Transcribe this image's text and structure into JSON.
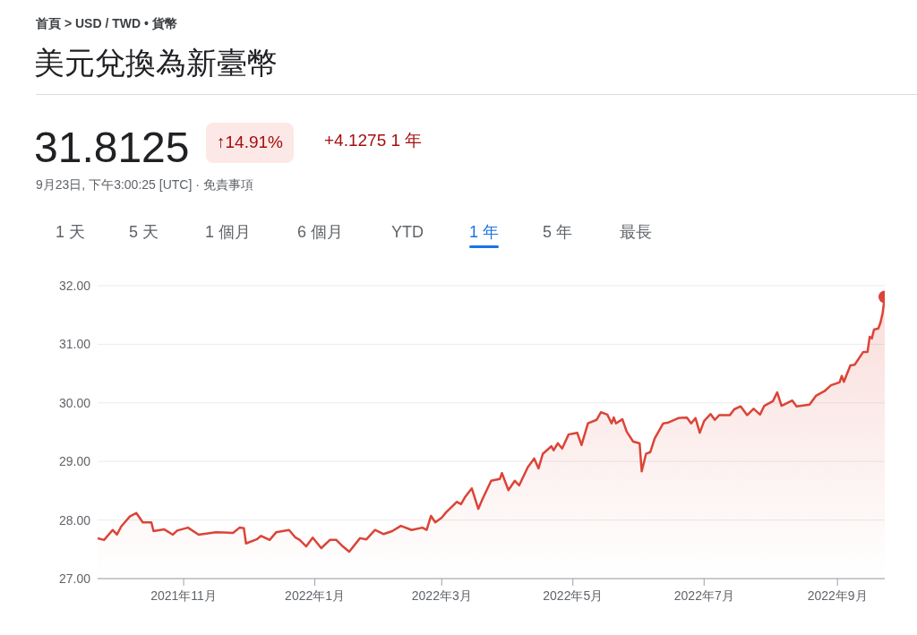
{
  "chart_data": {
    "type": "area",
    "title": "美元兌換為新臺幣",
    "annotations": [
      "首頁 > USD / TWD • 貨幣",
      "31.8125",
      "↑14.91%",
      "+4.1275 1 年",
      "9月23日, 下午3:00:25 [UTC] · 免責事項",
      "1 天",
      "5 天",
      "1 個月",
      "6 個月",
      "YTD",
      "1 年",
      "5 年",
      "最長"
    ],
    "series": [
      {
        "color": "#db4437",
        "x": [
          "2021-09-22",
          "2021-09-25",
          "2021-09-29",
          "2021-10-01",
          "2021-10-03",
          "2021-10-07",
          "2021-10-10",
          "2021-10-13",
          "2021-10-17",
          "2021-10-18",
          "2021-10-23",
          "2021-10-27",
          "2021-10-29",
          "2021-11-03",
          "2021-11-08",
          "2021-11-16",
          "2021-11-24",
          "2021-11-27",
          "2021-11-29",
          "2021-11-30",
          "2021-12-05",
          "2021-12-07",
          "2021-12-11",
          "2021-12-14",
          "2021-12-20",
          "2021-12-23",
          "2021-12-25",
          "2021-12-28",
          "2021-12-31",
          "2022-01-04",
          "2022-01-08",
          "2022-01-11",
          "2022-01-14",
          "2022-01-17",
          "2022-01-22",
          "2022-01-25",
          "2022-01-29",
          "2022-02-02",
          "2022-02-06",
          "2022-02-10",
          "2022-02-15",
          "2022-02-20",
          "2022-02-22",
          "2022-02-24",
          "2022-02-26",
          "2022-03-01",
          "2022-03-03",
          "2022-03-08",
          "2022-03-10",
          "2022-03-12",
          "2022-03-15",
          "2022-03-18",
          "2022-03-20",
          "2022-03-24",
          "2022-03-28",
          "2022-03-29",
          "2022-04-01",
          "2022-04-04",
          "2022-04-06",
          "2022-04-10",
          "2022-04-13",
          "2022-04-15",
          "2022-04-17",
          "2022-04-21",
          "2022-04-22",
          "2022-04-24",
          "2022-04-26",
          "2022-04-29",
          "2022-05-03",
          "2022-05-05",
          "2022-05-08",
          "2022-05-12",
          "2022-05-14",
          "2022-05-17",
          "2022-05-19",
          "2022-05-20",
          "2022-05-21",
          "2022-05-24",
          "2022-05-26",
          "2022-05-29",
          "2022-06-01",
          "2022-06-02",
          "2022-06-04",
          "2022-06-06",
          "2022-06-08",
          "2022-06-12",
          "2022-06-14",
          "2022-06-19",
          "2022-06-23",
          "2022-06-25",
          "2022-06-27",
          "2022-06-29",
          "2022-07-01",
          "2022-07-04",
          "2022-07-06",
          "2022-07-08",
          "2022-07-13",
          "2022-07-15",
          "2022-07-18",
          "2022-07-21",
          "2022-07-24",
          "2022-07-27",
          "2022-07-29",
          "2022-08-02",
          "2022-08-04",
          "2022-08-06",
          "2022-08-11",
          "2022-08-13",
          "2022-08-19",
          "2022-08-22",
          "2022-08-26",
          "2022-08-29",
          "2022-09-02",
          "2022-09-03",
          "2022-09-04",
          "2022-09-07",
          "2022-09-09",
          "2022-09-13",
          "2022-09-15",
          "2022-09-16",
          "2022-09-17",
          "2022-09-18",
          "2022-09-20",
          "2022-09-21",
          "2022-09-22",
          "2022-09-23"
        ],
        "values": [
          27.69,
          27.66,
          27.83,
          27.75,
          27.89,
          28.06,
          28.12,
          27.96,
          27.96,
          27.81,
          27.84,
          27.75,
          27.82,
          27.87,
          27.75,
          27.79,
          27.78,
          27.87,
          27.86,
          27.6,
          27.67,
          27.73,
          27.66,
          27.79,
          27.83,
          27.7,
          27.66,
          27.55,
          27.7,
          27.52,
          27.66,
          27.66,
          27.55,
          27.46,
          27.69,
          27.67,
          27.83,
          27.76,
          27.81,
          27.9,
          27.83,
          27.87,
          27.83,
          28.07,
          27.96,
          28.04,
          28.13,
          28.31,
          28.27,
          28.4,
          28.54,
          28.19,
          28.36,
          28.67,
          28.7,
          28.8,
          28.51,
          28.67,
          28.59,
          28.9,
          29.05,
          28.88,
          29.13,
          29.26,
          29.19,
          29.31,
          29.22,
          29.46,
          29.49,
          29.28,
          29.65,
          29.71,
          29.84,
          29.8,
          29.65,
          29.75,
          29.65,
          29.72,
          29.51,
          29.34,
          29.31,
          28.83,
          29.13,
          29.16,
          29.39,
          29.65,
          29.66,
          29.74,
          29.75,
          29.65,
          29.74,
          29.49,
          29.69,
          29.81,
          29.71,
          29.79,
          29.79,
          29.89,
          29.94,
          29.79,
          29.9,
          29.8,
          29.95,
          30.03,
          30.18,
          29.95,
          30.04,
          29.94,
          29.97,
          30.12,
          30.2,
          30.3,
          30.35,
          30.46,
          30.36,
          30.64,
          30.65,
          30.87,
          30.87,
          31.13,
          31.1,
          31.25,
          31.27,
          31.37,
          31.53,
          31.81
        ]
      },
      {
        "type": "scatter",
        "color": "#db4437",
        "marker": "circle",
        "x": [
          "2022-09-23"
        ],
        "values": [
          31.81
        ]
      }
    ],
    "xlim": [
      "2021-09-22",
      "2022-09-23"
    ],
    "xticks": [
      {
        "value": "2021-11-01",
        "label": "2021年11月"
      },
      {
        "value": "2022-01-01",
        "label": "2022年1月"
      },
      {
        "value": "2022-03-01",
        "label": "2022年3月"
      },
      {
        "value": "2022-05-01",
        "label": "2022年5月"
      },
      {
        "value": "2022-07-01",
        "label": "2022年7月"
      },
      {
        "value": "2022-09-01",
        "label": "2022年9月"
      }
    ],
    "ylim": [
      27,
      32
    ],
    "yticks": [
      {
        "value": 27,
        "label": "27.00"
      },
      {
        "value": 28,
        "label": "28.00"
      },
      {
        "value": 29,
        "label": "29.00"
      },
      {
        "value": 30,
        "label": "30.00"
      },
      {
        "value": 31,
        "label": "31.00"
      },
      {
        "value": 32,
        "label": "32.00"
      }
    ],
    "grid": "y",
    "legend": false,
    "marker": "none",
    "line_style": "solid"
  }
}
